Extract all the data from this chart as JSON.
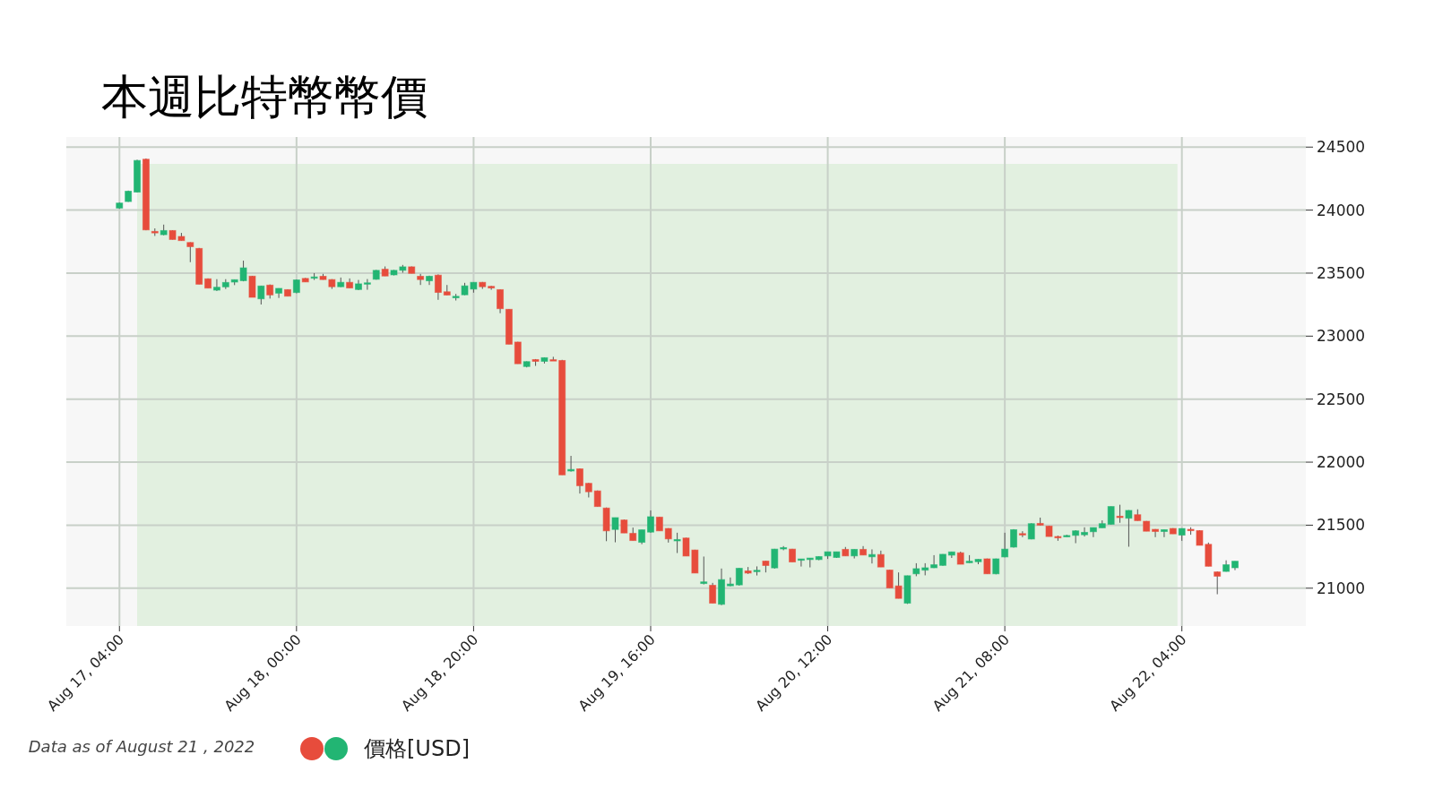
{
  "chart_data": {
    "type": "candlestick",
    "title": "本週比特幣幣價",
    "annotations": [
      "Data as of August 21 , 2022"
    ],
    "x": [
      "2022-08-17T04:00",
      "2022-08-17T05:00",
      "2022-08-17T06:00",
      "2022-08-17T07:00",
      "2022-08-17T08:00",
      "2022-08-17T09:00",
      "2022-08-17T10:00",
      "2022-08-17T11:00",
      "2022-08-17T12:00",
      "2022-08-17T13:00",
      "2022-08-17T14:00",
      "2022-08-17T15:00",
      "2022-08-17T16:00",
      "2022-08-17T17:00",
      "2022-08-17T18:00",
      "2022-08-17T19:00",
      "2022-08-17T20:00",
      "2022-08-17T21:00",
      "2022-08-17T22:00",
      "2022-08-17T23:00",
      "2022-08-18T00:00",
      "2022-08-18T01:00",
      "2022-08-18T02:00",
      "2022-08-18T03:00",
      "2022-08-18T04:00",
      "2022-08-18T05:00",
      "2022-08-18T06:00",
      "2022-08-18T07:00",
      "2022-08-18T08:00",
      "2022-08-18T09:00",
      "2022-08-18T10:00",
      "2022-08-18T11:00",
      "2022-08-18T12:00",
      "2022-08-18T13:00",
      "2022-08-18T14:00",
      "2022-08-18T15:00",
      "2022-08-18T16:00",
      "2022-08-18T17:00",
      "2022-08-18T18:00",
      "2022-08-18T19:00",
      "2022-08-18T20:00",
      "2022-08-18T21:00",
      "2022-08-18T22:00",
      "2022-08-18T23:00",
      "2022-08-19T00:00",
      "2022-08-19T01:00",
      "2022-08-19T02:00",
      "2022-08-19T03:00",
      "2022-08-19T04:00",
      "2022-08-19T05:00",
      "2022-08-19T06:00",
      "2022-08-19T07:00",
      "2022-08-19T08:00",
      "2022-08-19T09:00",
      "2022-08-19T10:00",
      "2022-08-19T11:00",
      "2022-08-19T12:00",
      "2022-08-19T13:00",
      "2022-08-19T14:00",
      "2022-08-19T15:00",
      "2022-08-19T16:00",
      "2022-08-19T17:00",
      "2022-08-19T18:00",
      "2022-08-19T19:00",
      "2022-08-19T20:00",
      "2022-08-19T21:00",
      "2022-08-19T22:00",
      "2022-08-19T23:00",
      "2022-08-20T00:00",
      "2022-08-20T01:00",
      "2022-08-20T02:00",
      "2022-08-20T03:00",
      "2022-08-20T04:00",
      "2022-08-20T05:00",
      "2022-08-20T06:00",
      "2022-08-20T07:00",
      "2022-08-20T08:00",
      "2022-08-20T09:00",
      "2022-08-20T10:00",
      "2022-08-20T11:00",
      "2022-08-20T12:00",
      "2022-08-20T13:00",
      "2022-08-20T14:00",
      "2022-08-20T15:00",
      "2022-08-20T16:00",
      "2022-08-20T17:00",
      "2022-08-20T18:00",
      "2022-08-20T19:00",
      "2022-08-20T20:00",
      "2022-08-20T21:00",
      "2022-08-20T22:00",
      "2022-08-20T23:00",
      "2022-08-21T00:00",
      "2022-08-21T01:00",
      "2022-08-21T02:00",
      "2022-08-21T03:00",
      "2022-08-21T04:00",
      "2022-08-21T05:00",
      "2022-08-21T06:00",
      "2022-08-21T07:00",
      "2022-08-21T08:00",
      "2022-08-21T09:00",
      "2022-08-21T10:00",
      "2022-08-21T11:00",
      "2022-08-21T12:00",
      "2022-08-21T13:00",
      "2022-08-21T14:00",
      "2022-08-21T15:00",
      "2022-08-21T16:00",
      "2022-08-21T17:00",
      "2022-08-21T18:00",
      "2022-08-21T19:00",
      "2022-08-21T20:00",
      "2022-08-21T21:00",
      "2022-08-21T22:00",
      "2022-08-21T23:00",
      "2022-08-22T00:00",
      "2022-08-22T01:00",
      "2022-08-22T02:00",
      "2022-08-22T03:00",
      "2022-08-22T04:00",
      "2022-08-22T05:00",
      "2022-08-22T06:00",
      "2022-08-22T07:00",
      "2022-08-22T08:00",
      "2022-08-22T09:00",
      "2022-08-22T10:00"
    ],
    "series": [
      {
        "name": "價格[USD]",
        "colors": [
          "#22b573",
          "#22b573",
          "#22b573",
          "#e74c3c",
          "#e74c3c",
          "#22b573",
          "#e74c3c",
          "#e74c3c",
          "#e74c3c",
          "#e74c3c",
          "#e74c3c",
          "#22b573",
          "#22b573",
          "#22b573",
          "#22b573",
          "#e74c3c",
          "#22b573",
          "#e74c3c",
          "#22b573",
          "#e74c3c",
          "#22b573",
          "#e74c3c",
          "#22b573",
          "#e74c3c",
          "#e74c3c",
          "#22b573",
          "#e74c3c",
          "#22b573",
          "#22b573",
          "#22b573",
          "#e74c3c",
          "#22b573",
          "#22b573",
          "#e74c3c",
          "#e74c3c",
          "#22b573",
          "#e74c3c",
          "#e74c3c",
          "#22b573",
          "#22b573",
          "#22b573",
          "#e74c3c",
          "#e74c3c",
          "#e74c3c",
          "#e74c3c",
          "#e74c3c",
          "#22b573",
          "#e74c3c",
          "#22b573",
          "#e74c3c",
          "#e74c3c",
          "#22b573",
          "#e74c3c",
          "#e74c3c",
          "#e74c3c",
          "#e74c3c",
          "#22b573",
          "#e74c3c",
          "#e74c3c",
          "#22b573",
          "#22b573",
          "#e74c3c",
          "#e74c3c",
          "#22b573",
          "#e74c3c",
          "#e74c3c",
          "#22b573",
          "#e74c3c",
          "#22b573",
          "#22b573",
          "#22b573",
          "#e74c3c",
          "#22b573",
          "#e74c3c",
          "#22b573",
          "#22b573",
          "#e74c3c",
          "#22b573",
          "#22b573",
          "#22b573",
          "#22b573",
          "#22b573",
          "#e74c3c",
          "#22b573",
          "#e74c3c",
          "#22b573",
          "#e74c3c",
          "#e74c3c",
          "#e74c3c",
          "#22b573",
          "#22b573",
          "#22b573",
          "#22b573",
          "#22b573",
          "#22b573",
          "#e74c3c",
          "#22b573",
          "#22b573",
          "#e74c3c",
          "#22b573",
          "#22b573",
          "#22b573",
          "#e74c3c",
          "#22b573",
          "#e74c3c",
          "#e74c3c",
          "#e74c3c",
          "#22b573",
          "#22b573",
          "#22b573",
          "#22b573",
          "#22b573",
          "#22b573",
          "#e74c3c",
          "#22b573",
          "#e74c3c",
          "#e74c3c",
          "#e74c3c",
          "#22b573",
          "#e74c3c",
          "#22b573",
          "#e74c3c",
          "#e74c3c",
          "#e74c3c",
          "#e74c3c",
          "#22b573",
          "#22b573"
        ],
        "ohlc": [
          [
            24016,
            24060,
            24010,
            24056
          ],
          [
            24068,
            24155,
            24065,
            24150
          ],
          [
            24143,
            24400,
            24140,
            24394
          ],
          [
            24404,
            24410,
            23840,
            23843
          ],
          [
            23831,
            23855,
            23795,
            23819
          ],
          [
            23805,
            23885,
            23800,
            23838
          ],
          [
            23838,
            23840,
            23767,
            23767
          ],
          [
            23791,
            23819,
            23758,
            23758
          ],
          [
            23743,
            23745,
            23587,
            23710
          ],
          [
            23696,
            23700,
            23412,
            23412
          ],
          [
            23455,
            23458,
            23381,
            23381
          ],
          [
            23365,
            23452,
            23358,
            23388
          ],
          [
            23391,
            23452,
            23374,
            23426
          ],
          [
            23429,
            23448,
            23405,
            23448
          ],
          [
            23440,
            23599,
            23435,
            23542
          ],
          [
            23476,
            23478,
            23308,
            23308
          ],
          [
            23296,
            23400,
            23251,
            23398
          ],
          [
            23405,
            23410,
            23298,
            23327
          ],
          [
            23341,
            23380,
            23303,
            23379
          ],
          [
            23369,
            23371,
            23317,
            23317
          ],
          [
            23346,
            23450,
            23340,
            23446
          ],
          [
            23458,
            23462,
            23430,
            23430
          ],
          [
            23465,
            23500,
            23446,
            23470
          ],
          [
            23475,
            23494,
            23448,
            23449
          ],
          [
            23449,
            23452,
            23375,
            23392
          ],
          [
            23392,
            23465,
            23389,
            23427
          ],
          [
            23427,
            23458,
            23382,
            23382
          ],
          [
            23370,
            23446,
            23365,
            23415
          ],
          [
            23413,
            23453,
            23368,
            23423
          ],
          [
            23451,
            23525,
            23448,
            23522
          ],
          [
            23531,
            23553,
            23477,
            23477
          ],
          [
            23486,
            23525,
            23482,
            23522
          ],
          [
            23522,
            23565,
            23503,
            23550
          ],
          [
            23550,
            23553,
            23498,
            23498
          ],
          [
            23475,
            23494,
            23406,
            23449
          ],
          [
            23439,
            23480,
            23406,
            23475
          ],
          [
            23484,
            23490,
            23288,
            23347
          ],
          [
            23352,
            23406,
            23325,
            23326
          ],
          [
            23304,
            23335,
            23283,
            23316
          ],
          [
            23328,
            23423,
            23325,
            23399
          ],
          [
            23373,
            23427,
            23345,
            23427
          ],
          [
            23427,
            23430,
            23375,
            23392
          ],
          [
            23395,
            23399,
            23368,
            23382
          ],
          [
            23369,
            23371,
            23182,
            23218
          ],
          [
            23213,
            23215,
            22936,
            22936
          ],
          [
            22953,
            22955,
            22781,
            22781
          ],
          [
            22759,
            22800,
            22752,
            22798
          ],
          [
            22814,
            22818,
            22764,
            22800
          ],
          [
            22800,
            22830,
            22783,
            22829
          ],
          [
            22813,
            22836,
            22805,
            22807
          ],
          [
            22807,
            22812,
            21899,
            21899
          ],
          [
            21930,
            22050,
            21925,
            21942
          ],
          [
            21947,
            21950,
            21751,
            21813
          ],
          [
            21832,
            21835,
            21720,
            21765
          ],
          [
            21772,
            21775,
            21648,
            21648
          ],
          [
            21636,
            21640,
            21373,
            21455
          ],
          [
            21466,
            21560,
            21364,
            21560
          ],
          [
            21541,
            21545,
            21438,
            21438
          ],
          [
            21435,
            21481,
            21378,
            21378
          ],
          [
            21364,
            21463,
            21349,
            21463
          ],
          [
            21445,
            21617,
            21440,
            21567
          ],
          [
            21564,
            21566,
            21455,
            21455
          ],
          [
            21474,
            21476,
            21362,
            21391
          ],
          [
            21386,
            21440,
            21279,
            21386
          ],
          [
            21398,
            21400,
            21255,
            21255
          ],
          [
            21303,
            21305,
            21120,
            21120
          ],
          [
            21037,
            21251,
            21030,
            21050
          ],
          [
            21023,
            21042,
            20881,
            20881
          ],
          [
            20872,
            21156,
            20865,
            21068
          ],
          [
            21019,
            21085,
            21015,
            21033
          ],
          [
            21026,
            21160,
            21020,
            21158
          ],
          [
            21137,
            21168,
            21113,
            21120
          ],
          [
            21135,
            21173,
            21101,
            21142
          ],
          [
            21215,
            21217,
            21125,
            21180
          ],
          [
            21161,
            21312,
            21155,
            21310
          ],
          [
            21317,
            21334,
            21301,
            21322
          ],
          [
            21310,
            21312,
            21208,
            21208
          ],
          [
            21225,
            21232,
            21172,
            21232
          ],
          [
            21227,
            21240,
            21165,
            21239
          ],
          [
            21227,
            21253,
            21222,
            21251
          ],
          [
            21256,
            21289,
            21232,
            21289
          ],
          [
            21244,
            21289,
            21240,
            21289
          ],
          [
            21308,
            21327,
            21256,
            21256
          ],
          [
            21256,
            21308,
            21236,
            21308
          ],
          [
            21308,
            21334,
            21263,
            21263
          ],
          [
            21249,
            21308,
            21196,
            21267
          ],
          [
            21267,
            21298,
            21168,
            21168
          ],
          [
            21144,
            21146,
            21002,
            21002
          ],
          [
            21018,
            21125,
            20919,
            20919
          ],
          [
            20881,
            21100,
            20875,
            21099
          ],
          [
            21114,
            21198,
            21095,
            21155
          ],
          [
            21143,
            21198,
            21102,
            21162
          ],
          [
            21162,
            21262,
            21160,
            21186
          ],
          [
            21181,
            21270,
            21178,
            21269
          ],
          [
            21262,
            21290,
            21240,
            21288
          ],
          [
            21281,
            21290,
            21190,
            21190
          ],
          [
            21202,
            21262,
            21200,
            21214
          ],
          [
            21210,
            21230,
            21190,
            21229
          ],
          [
            21233,
            21235,
            21114,
            21114
          ],
          [
            21114,
            21235,
            21110,
            21233
          ],
          [
            21248,
            21440,
            21245,
            21310
          ],
          [
            21326,
            21468,
            21322,
            21464
          ],
          [
            21433,
            21452,
            21405,
            21424
          ],
          [
            21390,
            21515,
            21388,
            21512
          ],
          [
            21514,
            21560,
            21498,
            21500
          ],
          [
            21493,
            21495,
            21410,
            21410
          ],
          [
            21410,
            21417,
            21376,
            21407
          ],
          [
            21415,
            21424,
            21407,
            21418
          ],
          [
            21419,
            21460,
            21357,
            21455
          ],
          [
            21424,
            21483,
            21410,
            21443
          ],
          [
            21448,
            21481,
            21405,
            21481
          ],
          [
            21479,
            21538,
            21479,
            21512
          ],
          [
            21507,
            21648,
            21505,
            21648
          ],
          [
            21571,
            21662,
            21519,
            21570
          ],
          [
            21555,
            21619,
            21329,
            21617
          ],
          [
            21583,
            21626,
            21535,
            21536
          ],
          [
            21531,
            21533,
            21452,
            21452
          ],
          [
            21467,
            21469,
            21405,
            21450
          ],
          [
            21450,
            21464,
            21405,
            21464
          ],
          [
            21474,
            21476,
            21431,
            21431
          ],
          [
            21421,
            21474,
            21376,
            21474
          ],
          [
            21467,
            21483,
            21424,
            21457
          ],
          [
            21457,
            21460,
            21340,
            21340
          ],
          [
            21348,
            21362,
            21174,
            21174
          ],
          [
            21129,
            21133,
            20952,
            21095
          ],
          [
            21133,
            21221,
            21131,
            21186
          ],
          [
            21162,
            21214,
            21143,
            21214
          ]
        ]
      }
    ],
    "xlim": [
      "2022-08-16T22:00",
      "2022-08-22T18:00"
    ],
    "xticks": [
      {
        "value": "2022-08-17T04:00",
        "label": "Aug 17, 04:00"
      },
      {
        "value": "2022-08-18T00:00",
        "label": "Aug 18, 00:00"
      },
      {
        "value": "2022-08-18T20:00",
        "label": "Aug 18, 20:00"
      },
      {
        "value": "2022-08-19T16:00",
        "label": "Aug 19, 16:00"
      },
      {
        "value": "2022-08-20T12:00",
        "label": "Aug 20, 12:00"
      },
      {
        "value": "2022-08-21T08:00",
        "label": "Aug 21, 08:00"
      },
      {
        "value": "2022-08-22T04:00",
        "label": "Aug 22, 04:00"
      }
    ],
    "ylim": [
      20700,
      24580
    ],
    "yticks": [
      21000,
      21500,
      22000,
      22500,
      23000,
      23500,
      24000,
      24500
    ],
    "bands": [
      {
        "axis": "x",
        "from": "2022-08-17T06:00",
        "to": "2022-08-22T03:30",
        "color": "#e2f0e0"
      }
    ],
    "grid": true,
    "legend": "bottom"
  }
}
